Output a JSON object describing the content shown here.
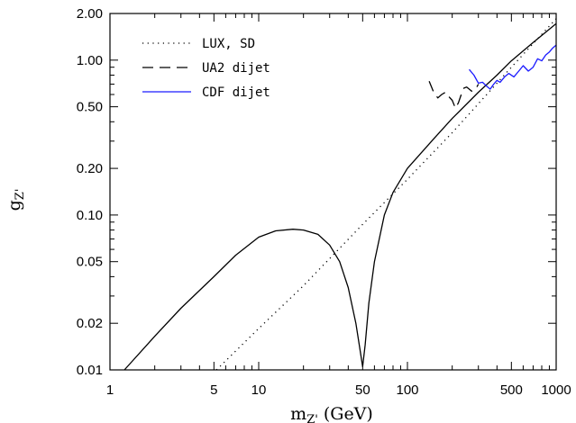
{
  "chart_data": {
    "type": "line",
    "title": "",
    "xlabel": "m_Z' (GeV)",
    "ylabel": "g_Z'",
    "x_scale": "log",
    "y_scale": "log",
    "xlim": [
      1,
      1000
    ],
    "ylim": [
      0.01,
      2.0
    ],
    "x_tick_labels": [
      {
        "value": 1,
        "label": "1"
      },
      {
        "value": 5,
        "label": "5"
      },
      {
        "value": 10,
        "label": "10"
      },
      {
        "value": 50,
        "label": "50"
      },
      {
        "value": 100,
        "label": "100"
      },
      {
        "value": 500,
        "label": "500"
      },
      {
        "value": 1000,
        "label": "1000"
      }
    ],
    "y_tick_labels": [
      {
        "value": 0.01,
        "label": "0.01"
      },
      {
        "value": 0.02,
        "label": "0.02"
      },
      {
        "value": 0.05,
        "label": "0.05"
      },
      {
        "value": 0.1,
        "label": "0.10"
      },
      {
        "value": 0.2,
        "label": "0.20"
      },
      {
        "value": 0.5,
        "label": "0.50"
      },
      {
        "value": 1.0,
        "label": "1.00"
      },
      {
        "value": 2.0,
        "label": "2.00"
      }
    ],
    "grid": false,
    "legend_position": "top-left",
    "series": [
      {
        "name": "",
        "style": "solid",
        "color": "#000000",
        "x": [
          1.25,
          2,
          3,
          5,
          7,
          10,
          13,
          17,
          20,
          25,
          30,
          35,
          40,
          45,
          48,
          50,
          52,
          55,
          60,
          70,
          80,
          100,
          150,
          200,
          300,
          400,
          500,
          700,
          1000
        ],
        "y": [
          0.01,
          0.0165,
          0.025,
          0.04,
          0.055,
          0.072,
          0.079,
          0.081,
          0.08,
          0.075,
          0.064,
          0.05,
          0.034,
          0.02,
          0.0135,
          0.0105,
          0.0145,
          0.027,
          0.05,
          0.1,
          0.14,
          0.2,
          0.31,
          0.42,
          0.62,
          0.8,
          0.99,
          1.3,
          1.72
        ]
      },
      {
        "name": "LUX, SD",
        "style": "dotted",
        "color": "#000000",
        "x": [
          5.2,
          10,
          20,
          50,
          100,
          200,
          500,
          1000
        ],
        "y": [
          0.01,
          0.0185,
          0.035,
          0.087,
          0.17,
          0.34,
          0.9,
          1.85
        ]
      },
      {
        "name": "UA2 dijet",
        "style": "dashed",
        "color": "#000000",
        "x": [
          140,
          150,
          160,
          170,
          180,
          190,
          200,
          210,
          220,
          230,
          240,
          250,
          260,
          270,
          280,
          290,
          300
        ],
        "y": [
          0.73,
          0.62,
          0.57,
          0.6,
          0.62,
          0.58,
          0.55,
          0.49,
          0.53,
          0.6,
          0.66,
          0.67,
          0.65,
          0.63,
          0.64,
          0.66,
          0.7
        ]
      },
      {
        "name": "CDF dijet",
        "style": "solid",
        "color": "#1a1aff",
        "x": [
          260,
          280,
          300,
          320,
          340,
          360,
          380,
          400,
          420,
          450,
          480,
          520,
          560,
          600,
          650,
          700,
          750,
          800,
          850,
          900,
          950,
          1000
        ],
        "y": [
          0.87,
          0.8,
          0.71,
          0.72,
          0.68,
          0.65,
          0.7,
          0.74,
          0.72,
          0.78,
          0.82,
          0.78,
          0.85,
          0.92,
          0.85,
          0.9,
          1.02,
          0.99,
          1.08,
          1.13,
          1.2,
          1.25
        ]
      }
    ]
  }
}
